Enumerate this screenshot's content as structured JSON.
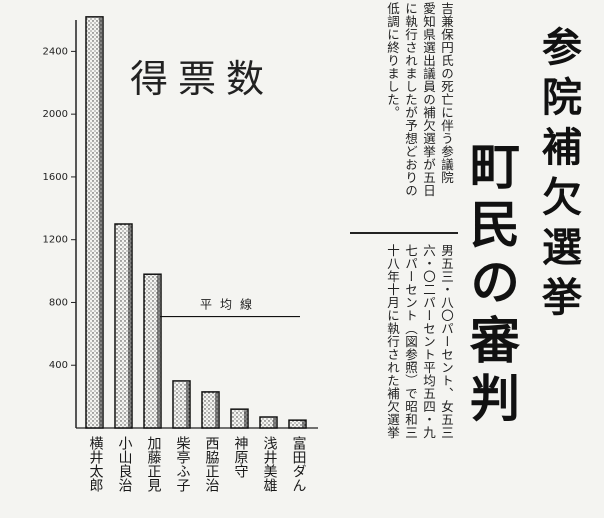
{
  "headline": {
    "sub": "参院補欠選挙",
    "main": "町民の審判"
  },
  "article": {
    "columns_upper": [
      "吉兼保円氏の死亡に伴う参議院",
      "愛知県選出議員の補欠選挙が五日",
      "に執行されましたが予想どおりの",
      "低調に終りました。"
    ],
    "columns_lower": [
      "男五三・八〇パーセント、女五三",
      "六・〇二パーセント平均五四・九",
      "七パーセント（図参照）で昭和三",
      "十八年十月に執行された補欠選挙"
    ]
  },
  "chart_data": {
    "type": "bar",
    "title": "得票数",
    "categories": [
      "横井太郎",
      "小山良治",
      "加藤正見",
      "柴亭ふ子",
      "西脇正治",
      "神原守",
      "浅井美雄",
      "富田ダん"
    ],
    "values": [
      2620,
      1300,
      980,
      300,
      230,
      120,
      70,
      50
    ],
    "ylim": [
      0,
      2600
    ],
    "yticks": [
      400,
      800,
      1200,
      1600,
      2000,
      2400
    ],
    "ylabel": "",
    "xlabel": "",
    "average_label": "平均線",
    "average_value": 710,
    "bar_fill": "stippled",
    "colors": {
      "ink": "#1a1a1a",
      "paper": "#f4f4f1"
    }
  }
}
